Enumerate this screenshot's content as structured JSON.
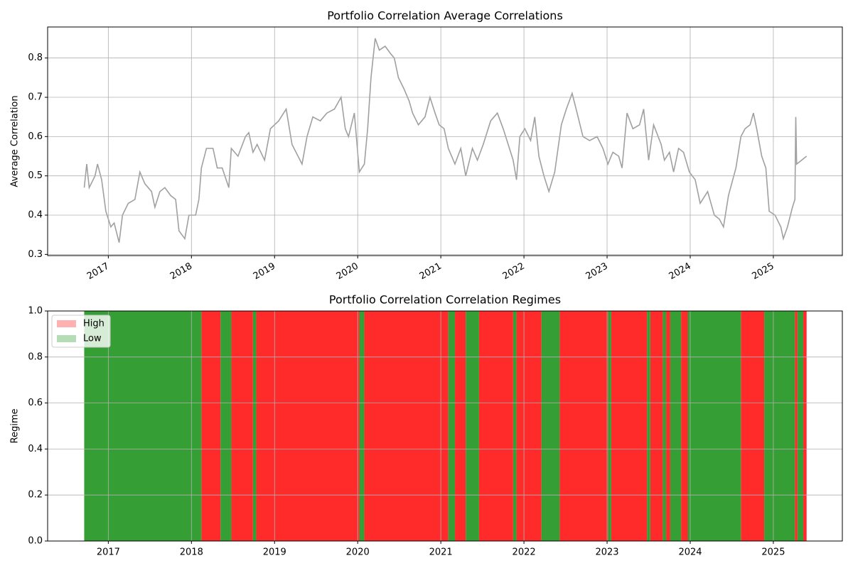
{
  "chart_data": [
    {
      "type": "line",
      "title": "Portfolio Correlation Average Correlations",
      "ylabel": "Average Correlation",
      "color": "#a0a0a0",
      "grid": true,
      "rotate_xticks": true,
      "xlim": [
        2016.27,
        2025.83
      ],
      "ylim": [
        0.297,
        0.879
      ],
      "xticks": [
        2017,
        2018,
        2019,
        2020,
        2021,
        2022,
        2023,
        2024,
        2025
      ],
      "yticks": [
        0.3,
        0.4,
        0.5,
        0.6,
        0.7,
        0.8
      ],
      "x": [
        2016.71,
        2016.74,
        2016.77,
        2016.84,
        2016.87,
        2016.92,
        2016.97,
        2017.03,
        2017.07,
        2017.13,
        2017.17,
        2017.24,
        2017.32,
        2017.38,
        2017.44,
        2017.52,
        2017.56,
        2017.62,
        2017.68,
        2017.75,
        2017.81,
        2017.85,
        2017.92,
        2017.97,
        2018.05,
        2018.09,
        2018.12,
        2018.18,
        2018.26,
        2018.31,
        2018.37,
        2018.45,
        2018.48,
        2018.56,
        2018.65,
        2018.69,
        2018.74,
        2018.79,
        2018.88,
        2018.95,
        2019.05,
        2019.14,
        2019.21,
        2019.33,
        2019.39,
        2019.46,
        2019.55,
        2019.63,
        2019.72,
        2019.8,
        2019.85,
        2019.89,
        2019.96,
        2020.02,
        2020.08,
        2020.12,
        2020.16,
        2020.21,
        2020.26,
        2020.33,
        2020.4,
        2020.44,
        2020.49,
        2020.56,
        2020.62,
        2020.66,
        2020.73,
        2020.81,
        2020.87,
        2020.93,
        2020.98,
        2021.04,
        2021.09,
        2021.17,
        2021.24,
        2021.3,
        2021.38,
        2021.44,
        2021.51,
        2021.6,
        2021.68,
        2021.75,
        2021.81,
        2021.87,
        2021.91,
        2021.95,
        2022.01,
        2022.08,
        2022.13,
        2022.18,
        2022.24,
        2022.3,
        2022.37,
        2022.45,
        2022.51,
        2022.58,
        2022.64,
        2022.71,
        2022.79,
        2022.88,
        2022.95,
        2023.01,
        2023.07,
        2023.14,
        2023.18,
        2023.24,
        2023.31,
        2023.39,
        2023.44,
        2023.5,
        2023.56,
        2023.65,
        2023.69,
        2023.75,
        2023.8,
        2023.86,
        2023.92,
        2023.99,
        2024.06,
        2024.12,
        2024.21,
        2024.29,
        2024.35,
        2024.4,
        2024.46,
        2024.55,
        2024.61,
        2024.66,
        2024.72,
        2024.76,
        2024.8,
        2024.86,
        2024.91,
        2024.95,
        2025.02,
        2025.09,
        2025.12,
        2025.17,
        2025.23,
        2025.26,
        2025.27,
        2025.28,
        2025.34,
        2025.4
      ],
      "values": [
        0.47,
        0.53,
        0.47,
        0.5,
        0.53,
        0.49,
        0.41,
        0.37,
        0.38,
        0.33,
        0.4,
        0.43,
        0.44,
        0.51,
        0.48,
        0.46,
        0.42,
        0.46,
        0.47,
        0.45,
        0.44,
        0.36,
        0.34,
        0.4,
        0.4,
        0.44,
        0.52,
        0.57,
        0.57,
        0.52,
        0.52,
        0.47,
        0.57,
        0.55,
        0.6,
        0.61,
        0.56,
        0.58,
        0.54,
        0.62,
        0.64,
        0.67,
        0.58,
        0.53,
        0.6,
        0.65,
        0.64,
        0.66,
        0.67,
        0.7,
        0.62,
        0.6,
        0.66,
        0.51,
        0.53,
        0.62,
        0.75,
        0.85,
        0.82,
        0.83,
        0.81,
        0.8,
        0.75,
        0.72,
        0.69,
        0.66,
        0.63,
        0.65,
        0.7,
        0.66,
        0.63,
        0.62,
        0.57,
        0.53,
        0.57,
        0.5,
        0.57,
        0.54,
        0.58,
        0.64,
        0.66,
        0.62,
        0.58,
        0.54,
        0.49,
        0.6,
        0.62,
        0.59,
        0.65,
        0.55,
        0.5,
        0.46,
        0.51,
        0.63,
        0.67,
        0.71,
        0.66,
        0.6,
        0.59,
        0.6,
        0.57,
        0.53,
        0.56,
        0.55,
        0.52,
        0.66,
        0.62,
        0.63,
        0.67,
        0.54,
        0.63,
        0.58,
        0.54,
        0.56,
        0.51,
        0.57,
        0.56,
        0.51,
        0.49,
        0.43,
        0.46,
        0.4,
        0.39,
        0.37,
        0.45,
        0.52,
        0.6,
        0.62,
        0.63,
        0.66,
        0.62,
        0.55,
        0.52,
        0.41,
        0.4,
        0.37,
        0.34,
        0.37,
        0.42,
        0.44,
        0.65,
        0.53,
        0.54,
        0.55
      ]
    },
    {
      "type": "regime",
      "title": "Portfolio Correlation Correlation Regimes",
      "ylabel": "Regime",
      "grid": true,
      "legend": "upper left",
      "xlim": [
        2016.27,
        2025.83
      ],
      "ylim": [
        0,
        1
      ],
      "xticks": [
        2017,
        2018,
        2019,
        2020,
        2021,
        2022,
        2023,
        2024,
        2025
      ],
      "yticks": [
        {
          "value": 0,
          "label": "0.0"
        },
        0.2,
        0.4,
        0.6,
        0.8,
        {
          "value": 1,
          "label": "1.0"
        }
      ],
      "series": [
        {
          "name": "High",
          "color": "#ff2020",
          "spans": [
            [
              2018.12,
              2018.35
            ],
            [
              2018.48,
              2018.74
            ],
            [
              2018.78,
              2020.02
            ],
            [
              2020.08,
              2021.09
            ],
            [
              2021.17,
              2021.3
            ],
            [
              2021.46,
              2021.87
            ],
            [
              2021.91,
              2022.21
            ],
            [
              2022.43,
              2023.01
            ],
            [
              2023.05,
              2023.48
            ],
            [
              2023.52,
              2023.67
            ],
            [
              2023.71,
              2023.76
            ],
            [
              2023.89,
              2023.97
            ],
            [
              2024.61,
              2024.89
            ],
            [
              2025.26,
              2025.29
            ],
            [
              2025.36,
              2025.4
            ]
          ]
        },
        {
          "name": "Low",
          "color": "#2a9a2a",
          "spans": [
            [
              2016.71,
              2018.12
            ],
            [
              2018.35,
              2018.48
            ],
            [
              2018.74,
              2018.78
            ],
            [
              2020.02,
              2020.08
            ],
            [
              2021.09,
              2021.17
            ],
            [
              2021.3,
              2021.46
            ],
            [
              2021.87,
              2021.91
            ],
            [
              2022.21,
              2022.43
            ],
            [
              2023.01,
              2023.05
            ],
            [
              2023.48,
              2023.52
            ],
            [
              2023.67,
              2023.71
            ],
            [
              2023.76,
              2023.89
            ],
            [
              2023.97,
              2024.61
            ],
            [
              2024.89,
              2025.26
            ],
            [
              2025.29,
              2025.36
            ]
          ]
        }
      ]
    }
  ]
}
